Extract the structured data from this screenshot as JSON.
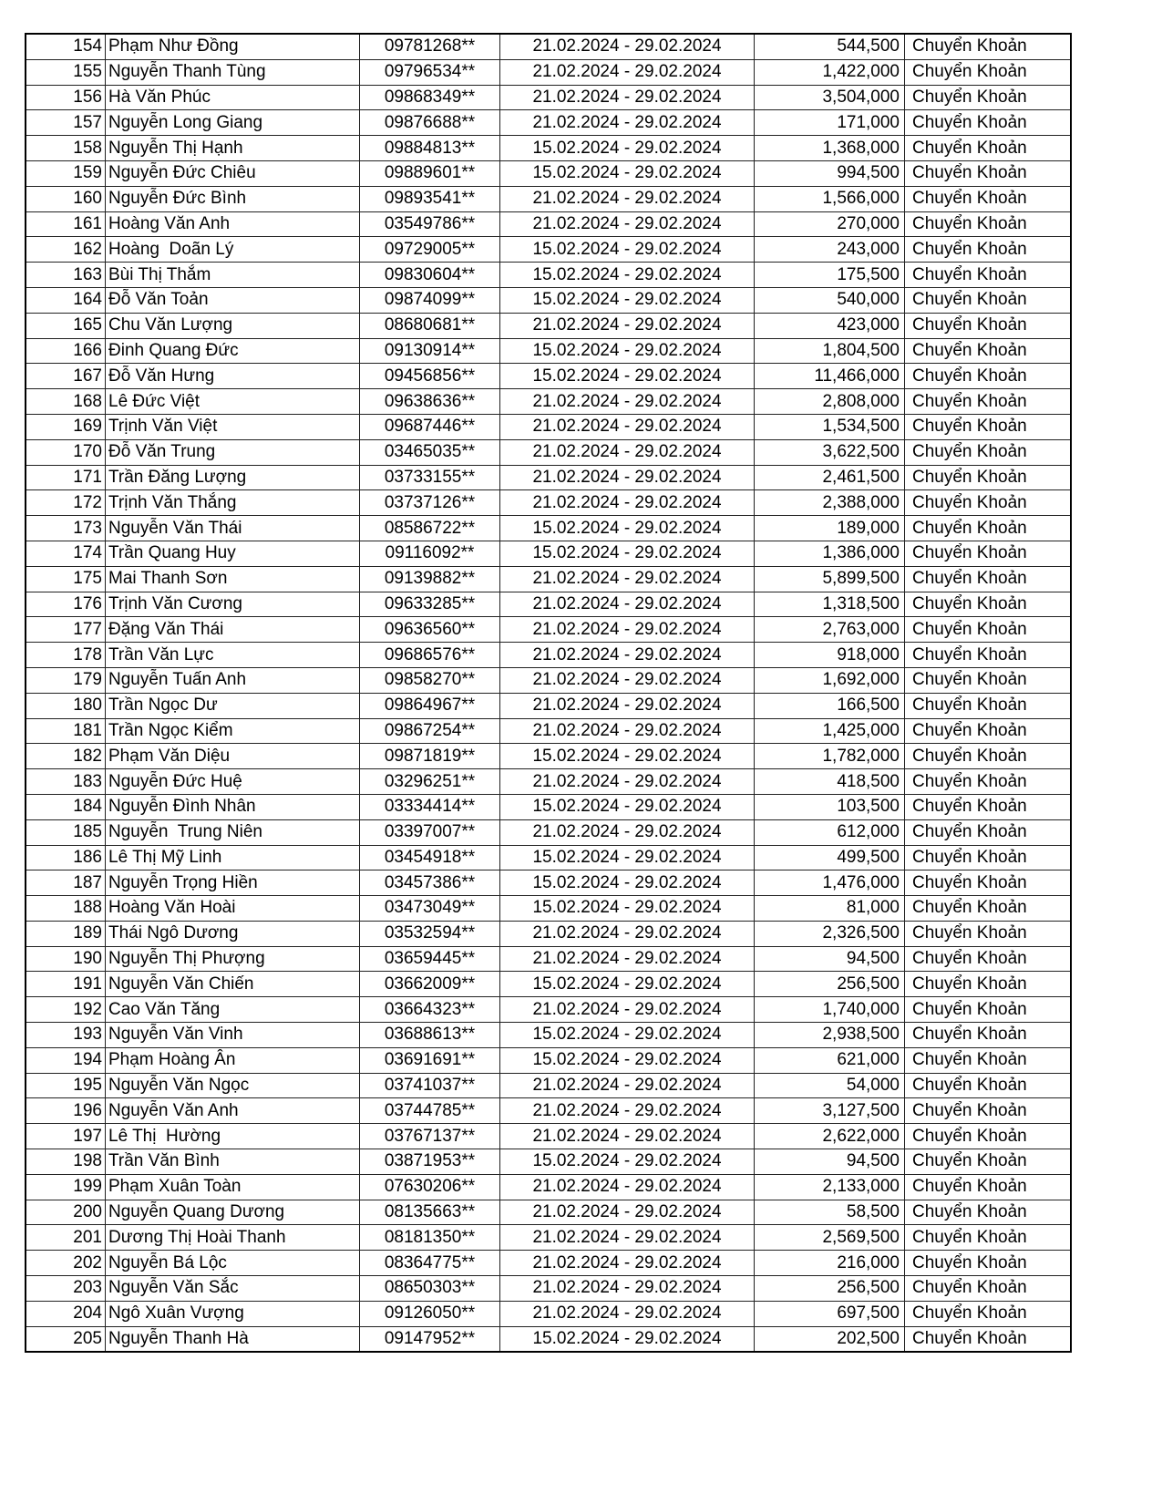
{
  "table": {
    "rows": [
      [
        "154",
        "Phạm Như Đồng",
        "09781268**",
        "21.02.2024 - 29.02.2024",
        "544,500",
        "Chuyển Khoản"
      ],
      [
        "155",
        "Nguyễn Thanh Tùng",
        "09796534**",
        "21.02.2024 - 29.02.2024",
        "1,422,000",
        "Chuyển Khoản"
      ],
      [
        "156",
        "Hà Văn Phúc",
        "09868349**",
        "21.02.2024 - 29.02.2024",
        "3,504,000",
        "Chuyển Khoản"
      ],
      [
        "157",
        "Nguyễn Long Giang",
        "09876688**",
        "21.02.2024 - 29.02.2024",
        "171,000",
        "Chuyển Khoản"
      ],
      [
        "158",
        "Nguyễn Thị Hạnh",
        "09884813**",
        "15.02.2024 - 29.02.2024",
        "1,368,000",
        "Chuyển Khoản"
      ],
      [
        "159",
        "Nguyễn Đức Chiêu",
        "09889601**",
        "15.02.2024 - 29.02.2024",
        "994,500",
        "Chuyển Khoản"
      ],
      [
        "160",
        "Nguyễn Đức Bình",
        "09893541**",
        "21.02.2024 - 29.02.2024",
        "1,566,000",
        "Chuyển Khoản"
      ],
      [
        "161",
        "Hoàng Văn Anh",
        "03549786**",
        "21.02.2024 - 29.02.2024",
        "270,000",
        "Chuyển Khoản"
      ],
      [
        "162",
        "Hoàng  Doãn Lý",
        "09729005**",
        "15.02.2024 - 29.02.2024",
        "243,000",
        "Chuyển Khoản"
      ],
      [
        "163",
        "Bùi Thị Thắm",
        "09830604**",
        "15.02.2024 - 29.02.2024",
        "175,500",
        "Chuyển Khoản"
      ],
      [
        "164",
        "Đỗ Văn Toản",
        "09874099**",
        "15.02.2024 - 29.02.2024",
        "540,000",
        "Chuyển Khoản"
      ],
      [
        "165",
        "Chu Văn Lượng",
        "08680681**",
        "21.02.2024 - 29.02.2024",
        "423,000",
        "Chuyển Khoản"
      ],
      [
        "166",
        "Đinh Quang Đức",
        "09130914**",
        "15.02.2024 - 29.02.2024",
        "1,804,500",
        "Chuyển Khoản"
      ],
      [
        "167",
        "Đỗ Văn Hưng",
        "09456856**",
        "15.02.2024 - 29.02.2024",
        "11,466,000",
        "Chuyển Khoản"
      ],
      [
        "168",
        "Lê Đức Việt",
        "09638636**",
        "21.02.2024 - 29.02.2024",
        "2,808,000",
        "Chuyển Khoản"
      ],
      [
        "169",
        "Trịnh Văn Việt",
        "09687446**",
        "21.02.2024 - 29.02.2024",
        "1,534,500",
        "Chuyển Khoản"
      ],
      [
        "170",
        "Đỗ Văn Trung",
        "03465035**",
        "21.02.2024 - 29.02.2024",
        "3,622,500",
        "Chuyển Khoản"
      ],
      [
        "171",
        "Trần Đăng Lượng",
        "03733155**",
        "21.02.2024 - 29.02.2024",
        "2,461,500",
        "Chuyển Khoản"
      ],
      [
        "172",
        "Trịnh Văn Thắng",
        "03737126**",
        "21.02.2024 - 29.02.2024",
        "2,388,000",
        "Chuyển Khoản"
      ],
      [
        "173",
        "Nguyễn Văn Thái",
        "08586722**",
        "15.02.2024 - 29.02.2024",
        "189,000",
        "Chuyển Khoản"
      ],
      [
        "174",
        "Trần Quang Huy",
        "09116092**",
        "15.02.2024 - 29.02.2024",
        "1,386,000",
        "Chuyển Khoản"
      ],
      [
        "175",
        "Mai Thanh Sơn",
        "09139882**",
        "21.02.2024 - 29.02.2024",
        "5,899,500",
        "Chuyển Khoản"
      ],
      [
        "176",
        "Trịnh Văn Cương",
        "09633285**",
        "21.02.2024 - 29.02.2024",
        "1,318,500",
        "Chuyển Khoản"
      ],
      [
        "177",
        "Đặng Văn Thái",
        "09636560**",
        "21.02.2024 - 29.02.2024",
        "2,763,000",
        "Chuyển Khoản"
      ],
      [
        "178",
        "Trần Văn Lực",
        "09686576**",
        "21.02.2024 - 29.02.2024",
        "918,000",
        "Chuyển Khoản"
      ],
      [
        "179",
        "Nguyễn Tuấn Anh",
        "09858270**",
        "21.02.2024 - 29.02.2024",
        "1,692,000",
        "Chuyển Khoản"
      ],
      [
        "180",
        "Trần Ngọc Dư",
        "09864967**",
        "21.02.2024 - 29.02.2024",
        "166,500",
        "Chuyển Khoản"
      ],
      [
        "181",
        "Trần Ngọc Kiểm",
        "09867254**",
        "21.02.2024 - 29.02.2024",
        "1,425,000",
        "Chuyển Khoản"
      ],
      [
        "182",
        "Phạm Văn Diệu",
        "09871819**",
        "15.02.2024 - 29.02.2024",
        "1,782,000",
        "Chuyển Khoản"
      ],
      [
        "183",
        "Nguyễn Đức Huệ",
        "03296251**",
        "21.02.2024 - 29.02.2024",
        "418,500",
        "Chuyển Khoản"
      ],
      [
        "184",
        "Nguyễn Đình Nhân",
        "03334414**",
        "15.02.2024 - 29.02.2024",
        "103,500",
        "Chuyển Khoản"
      ],
      [
        "185",
        "Nguyễn  Trung Niên",
        "03397007**",
        "21.02.2024 - 29.02.2024",
        "612,000",
        "Chuyển Khoản"
      ],
      [
        "186",
        "Lê Thị Mỹ Linh",
        "03454918**",
        "15.02.2024 - 29.02.2024",
        "499,500",
        "Chuyển Khoản"
      ],
      [
        "187",
        "Nguyễn Trọng Hiền",
        "03457386**",
        "15.02.2024 - 29.02.2024",
        "1,476,000",
        "Chuyển Khoản"
      ],
      [
        "188",
        "Hoàng Văn Hoài",
        "03473049**",
        "15.02.2024 - 29.02.2024",
        "81,000",
        "Chuyển Khoản"
      ],
      [
        "189",
        "Thái Ngô Dương",
        "03532594**",
        "21.02.2024 - 29.02.2024",
        "2,326,500",
        "Chuyển Khoản"
      ],
      [
        "190",
        "Nguyễn Thị Phượng",
        "03659445**",
        "21.02.2024 - 29.02.2024",
        "94,500",
        "Chuyển Khoản"
      ],
      [
        "191",
        "Nguyễn Văn Chiến",
        "03662009**",
        "15.02.2024 - 29.02.2024",
        "256,500",
        "Chuyển Khoản"
      ],
      [
        "192",
        "Cao Văn Tăng",
        "03664323**",
        "21.02.2024 - 29.02.2024",
        "1,740,000",
        "Chuyển Khoản"
      ],
      [
        "193",
        "Nguyễn Văn Vinh",
        "03688613**",
        "15.02.2024 - 29.02.2024",
        "2,938,500",
        "Chuyển Khoản"
      ],
      [
        "194",
        "Phạm Hoàng Ân",
        "03691691**",
        "15.02.2024 - 29.02.2024",
        "621,000",
        "Chuyển Khoản"
      ],
      [
        "195",
        "Nguyễn Văn Ngọc",
        "03741037**",
        "21.02.2024 - 29.02.2024",
        "54,000",
        "Chuyển Khoản"
      ],
      [
        "196",
        "Nguyễn Văn Anh",
        "03744785**",
        "21.02.2024 - 29.02.2024",
        "3,127,500",
        "Chuyển Khoản"
      ],
      [
        "197",
        "Lê Thị  Hường",
        "03767137**",
        "21.02.2024 - 29.02.2024",
        "2,622,000",
        "Chuyển Khoản"
      ],
      [
        "198",
        "Trần Văn Bình",
        "03871953**",
        "15.02.2024 - 29.02.2024",
        "94,500",
        "Chuyển Khoản"
      ],
      [
        "199",
        "Phạm Xuân Toàn",
        "07630206**",
        "21.02.2024 - 29.02.2024",
        "2,133,000",
        "Chuyển Khoản"
      ],
      [
        "200",
        "Nguyễn Quang Dương",
        "08135663**",
        "21.02.2024 - 29.02.2024",
        "58,500",
        "Chuyển Khoản"
      ],
      [
        "201",
        "Dương Thị Hoài Thanh",
        "08181350**",
        "21.02.2024 - 29.02.2024",
        "2,569,500",
        "Chuyển Khoản"
      ],
      [
        "202",
        "Nguyễn Bá Lộc",
        "08364775**",
        "21.02.2024 - 29.02.2024",
        "216,000",
        "Chuyển Khoản"
      ],
      [
        "203",
        "Nguyễn Văn Sắc",
        "08650303**",
        "21.02.2024 - 29.02.2024",
        "256,500",
        "Chuyển Khoản"
      ],
      [
        "204",
        "Ngô Xuân Vượng",
        "09126050**",
        "21.02.2024 - 29.02.2024",
        "697,500",
        "Chuyển Khoản"
      ],
      [
        "205",
        "Nguyễn Thanh Hà",
        "09147952**",
        "15.02.2024 - 29.02.2024",
        "202,500",
        "Chuyển Khoản"
      ]
    ]
  }
}
